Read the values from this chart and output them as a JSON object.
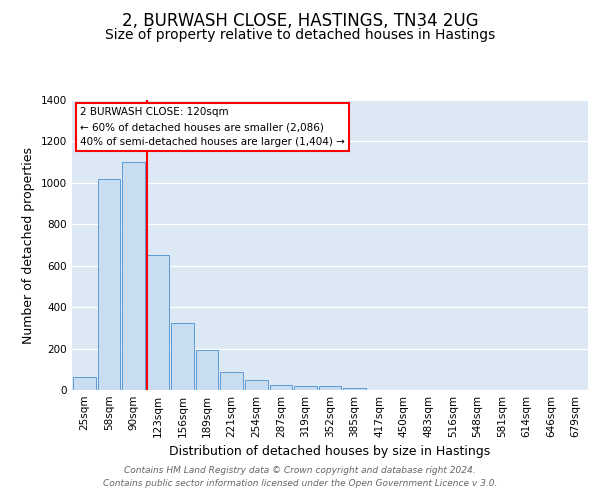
{
  "title": "2, BURWASH CLOSE, HASTINGS, TN34 2UG",
  "subtitle": "Size of property relative to detached houses in Hastings",
  "xlabel": "Distribution of detached houses by size in Hastings",
  "ylabel": "Number of detached properties",
  "bar_labels": [
    "25sqm",
    "58sqm",
    "90sqm",
    "123sqm",
    "156sqm",
    "189sqm",
    "221sqm",
    "254sqm",
    "287sqm",
    "319sqm",
    "352sqm",
    "385sqm",
    "417sqm",
    "450sqm",
    "483sqm",
    "516sqm",
    "548sqm",
    "581sqm",
    "614sqm",
    "646sqm",
    "679sqm"
  ],
  "bar_values": [
    65,
    1020,
    1100,
    650,
    325,
    195,
    85,
    48,
    25,
    20,
    20,
    10,
    0,
    0,
    0,
    0,
    0,
    0,
    0,
    0,
    0
  ],
  "bar_color": "#c9ddf0",
  "bar_edge_color": "#5b9bd5",
  "ylim": [
    0,
    1400
  ],
  "yticks": [
    0,
    200,
    400,
    600,
    800,
    1000,
    1200,
    1400
  ],
  "annotation_title": "2 BURWASH CLOSE: 120sqm",
  "annotation_line1": "← 60% of detached houses are smaller (2,086)",
  "annotation_line2": "40% of semi-detached houses are larger (1,404) →",
  "footer_line1": "Contains HM Land Registry data © Crown copyright and database right 2024.",
  "footer_line2": "Contains public sector information licensed under the Open Government Licence v 3.0.",
  "bg_color": "#ffffff",
  "plot_bg_color": "#dce9f5",
  "grid_color": "#ffffff",
  "title_fontsize": 12,
  "subtitle_fontsize": 10,
  "axis_label_fontsize": 9,
  "tick_fontsize": 7.5,
  "footer_fontsize": 6.5,
  "red_line_index": 3
}
